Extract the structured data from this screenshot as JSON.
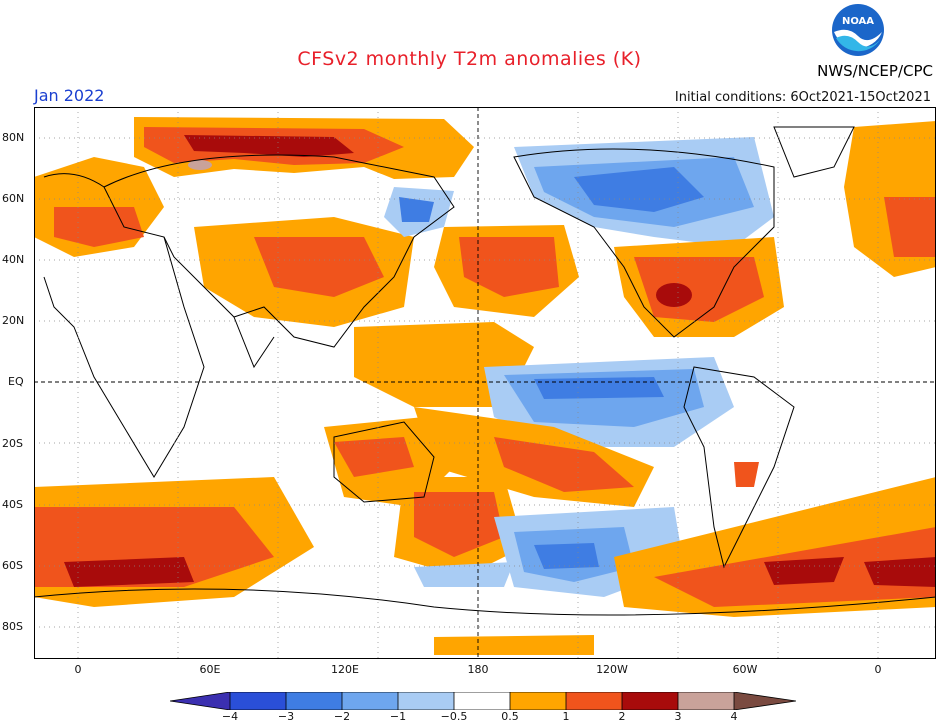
{
  "header": {
    "title": "CFSv2 monthly T2m anomalies (K)",
    "month": "Jan 2022",
    "initial_conditions": "Initial conditions: 6Oct2021-15Oct2021",
    "agency": "NWS/NCEP/CPC",
    "logo_text": "NOAA"
  },
  "axes": {
    "y_labels": [
      "80N",
      "60N",
      "40N",
      "20N",
      "EQ",
      "20S",
      "40S",
      "60S",
      "80S"
    ],
    "x_labels": [
      "0",
      "60E",
      "120E",
      "180",
      "120W",
      "60W",
      "0"
    ]
  },
  "colorbar": {
    "labels": [
      "−4",
      "−3",
      "−2",
      "−1",
      "−0.5",
      "0.5",
      "1",
      "2",
      "3",
      "4"
    ],
    "colors": [
      "#3b2fb0",
      "#2a4fd8",
      "#3f7de3",
      "#6ea6ee",
      "#a9ccf4",
      "#ffffff",
      "#ffa500",
      "#f0541c",
      "#a80b0b",
      "#c9a29a",
      "#7a4a40"
    ]
  }
}
